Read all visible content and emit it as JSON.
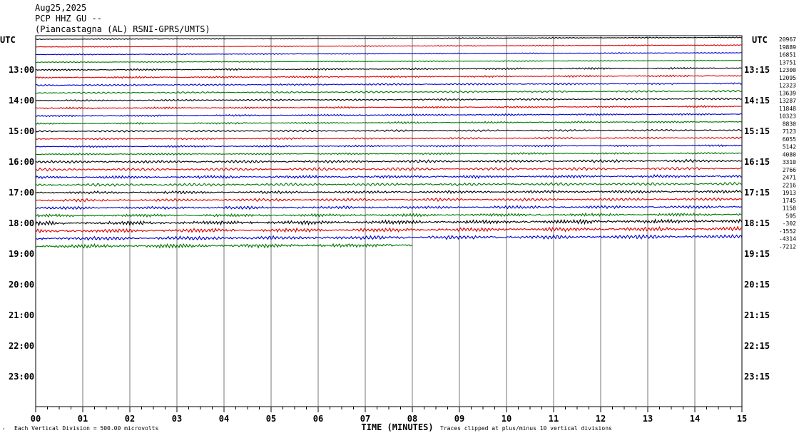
{
  "header": {
    "date": "Aug25,2025",
    "station": "PCP HHZ GU --",
    "location": "(Piancastagna (AL) RSNI-GPRS/UMTS)"
  },
  "chart_data": {
    "type": "line",
    "title": "",
    "left_timezone": "UTC",
    "right_timezone": "UTC",
    "left_hour_labels": [
      "13:00",
      "14:00",
      "15:00",
      "16:00",
      "17:00",
      "18:00",
      "19:00",
      "20:00",
      "21:00",
      "22:00",
      "23:00"
    ],
    "right_hour_labels": [
      "13:15",
      "14:15",
      "15:15",
      "16:15",
      "17:15",
      "18:15",
      "19:15",
      "20:15",
      "21:15",
      "22:15",
      "23:15"
    ],
    "x_ticks": [
      "00",
      "01",
      "02",
      "03",
      "04",
      "05",
      "06",
      "07",
      "08",
      "09",
      "10",
      "11",
      "12",
      "13",
      "14",
      "15"
    ],
    "xlabel": "TIME (MINUTES)",
    "xlim": [
      0,
      15
    ],
    "grid": true,
    "trace_colors": [
      "#000000",
      "#dd0000",
      "#0000cc",
      "#007700"
    ],
    "trace_offsets": [
      "20967",
      "19889",
      "16851",
      "13751",
      "12300",
      "12095",
      "12323",
      "13639",
      "13287",
      "11848",
      "10323",
      "8830",
      "7123",
      "6055",
      "5142",
      "4080",
      "3310",
      "2766",
      "2471",
      "2216",
      "1913",
      "1745",
      "1158",
      "595",
      "-302",
      "-1552",
      "-4314",
      "-7212"
    ],
    "last_trace_end_minute": 8.0,
    "footer_left": "Each Vertical Division =  500.00 microvolts",
    "footer_right": "Traces clipped at plus/minus 10 vertical divisions",
    "corner_mark": "ᵗ"
  }
}
